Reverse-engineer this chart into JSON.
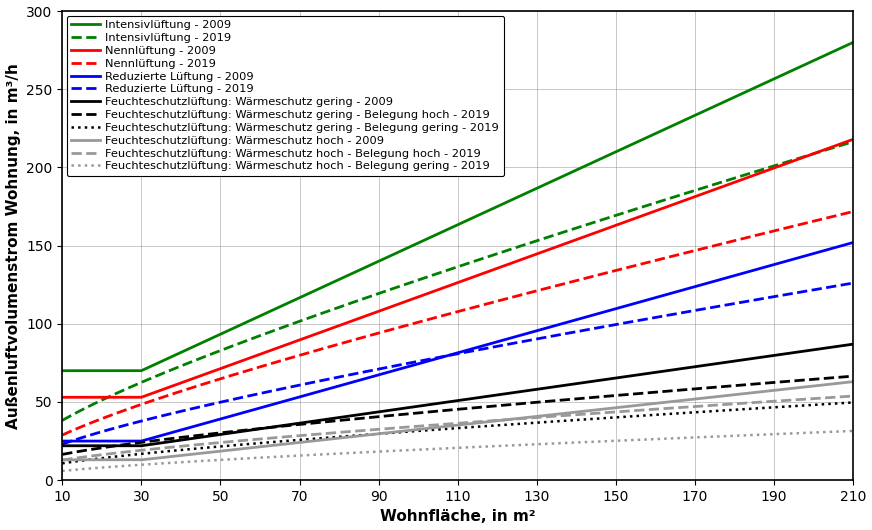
{
  "xlabel": "Wohnfläche, in m²",
  "ylabel": "Außenluftvolumenstrom Wohnung, in m³/h",
  "xlim": [
    10,
    210
  ],
  "ylim": [
    0,
    300
  ],
  "xticks": [
    10,
    30,
    50,
    70,
    90,
    110,
    130,
    150,
    170,
    190,
    210
  ],
  "yticks": [
    0,
    50,
    100,
    150,
    200,
    250,
    300
  ],
  "legend_fontsize": 8.2,
  "series": [
    {
      "label": "Intensivlüftung - 2009",
      "color": "#008000",
      "linestyle": "-",
      "linewidth": 2.0,
      "data_type": "intensiv_2009"
    },
    {
      "label": "Intensivlüftung - 2019",
      "color": "#008000",
      "linestyle": "--",
      "linewidth": 2.0,
      "data_type": "intensiv_2019"
    },
    {
      "label": "Nennlüftung - 2009",
      "color": "#ff0000",
      "linestyle": "-",
      "linewidth": 2.0,
      "data_type": "nenn_2009"
    },
    {
      "label": "Nennlüftung - 2019",
      "color": "#ff0000",
      "linestyle": "--",
      "linewidth": 2.0,
      "data_type": "nenn_2019"
    },
    {
      "label": "Reduzierte Lüftung - 2009",
      "color": "#0000ff",
      "linestyle": "-",
      "linewidth": 2.0,
      "data_type": "reduz_2009"
    },
    {
      "label": "Reduzierte Lüftung - 2019",
      "color": "#0000ff",
      "linestyle": "--",
      "linewidth": 2.0,
      "data_type": "reduz_2019"
    },
    {
      "label": "Feuchteschutzlüftung: Wärmeschutz gering - 2009",
      "color": "#000000",
      "linestyle": "-",
      "linewidth": 2.0,
      "data_type": "feuchts_gering_2009"
    },
    {
      "label": "Feuchteschutzlüftung: Wärmeschutz gering - Belegung hoch - 2019",
      "color": "#000000",
      "linestyle": "--",
      "linewidth": 2.0,
      "data_type": "feuchts_gering_hoch_2019"
    },
    {
      "label": "Feuchteschutzlüftung: Wärmeschutz gering - Belegung gering - 2019",
      "color": "#000000",
      "linestyle": ":",
      "linewidth": 1.8,
      "data_type": "feuchts_gering_gering_2019"
    },
    {
      "label": "Feuchteschutzlüftung: Wärmeschutz hoch - 2009",
      "color": "#999999",
      "linestyle": "-",
      "linewidth": 2.0,
      "data_type": "feuchts_hoch_2009"
    },
    {
      "label": "Feuchteschutzlüftung: Wärmeschutz hoch - Belegung hoch - 2019",
      "color": "#999999",
      "linestyle": "--",
      "linewidth": 2.0,
      "data_type": "feuchts_hoch_hoch_2019"
    },
    {
      "label": "Feuchteschutzlüftung: Wärmeschutz hoch - Belegung gering - 2019",
      "color": "#999999",
      "linestyle": ":",
      "linewidth": 1.8,
      "data_type": "feuchts_hoch_gering_2019"
    }
  ]
}
